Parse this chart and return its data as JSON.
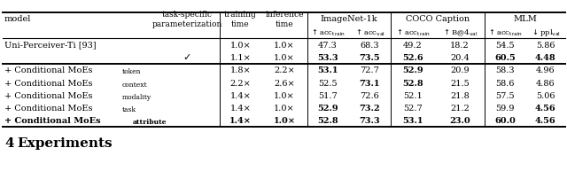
{
  "rows": [
    {
      "model": "Uni-Perceiver-Ti [93]",
      "param": "",
      "train_time": "1.0×",
      "inf_time": "1.0×",
      "imgnet_train": "47.3",
      "imgnet_val": "68.3",
      "coco_train": "49.2",
      "coco_val": "18.2",
      "mlm_train": "54.5",
      "mlm_val": "5.86",
      "bold": [],
      "highlight": false
    },
    {
      "model": "",
      "param": "✓",
      "train_time": "1.1×",
      "inf_time": "1.0×",
      "imgnet_train": "53.3",
      "imgnet_val": "73.5",
      "coco_train": "52.6",
      "coco_val": "20.4",
      "mlm_train": "60.5",
      "mlm_val": "4.48",
      "bold": [
        "imgnet_train",
        "imgnet_val",
        "coco_train",
        "mlm_train",
        "mlm_val"
      ],
      "highlight": false
    },
    {
      "model": "+ Conditional MoEs",
      "model_sub": "token",
      "param": "",
      "train_time": "1.8×",
      "inf_time": "2.2×",
      "imgnet_train": "53.1",
      "imgnet_val": "72.7",
      "coco_train": "52.9",
      "coco_val": "20.9",
      "mlm_train": "58.3",
      "mlm_val": "4.96",
      "bold": [
        "imgnet_train",
        "coco_train"
      ],
      "highlight": false
    },
    {
      "model": "+ Conditional MoEs",
      "model_sub": "context",
      "param": "",
      "train_time": "2.2×",
      "inf_time": "2.6×",
      "imgnet_train": "52.5",
      "imgnet_val": "73.1",
      "coco_train": "52.8",
      "coco_val": "21.5",
      "mlm_train": "58.6",
      "mlm_val": "4.86",
      "bold": [
        "imgnet_val",
        "coco_train"
      ],
      "highlight": false
    },
    {
      "model": "+ Conditional MoEs",
      "model_sub": "modality",
      "param": "",
      "train_time": "1.4×",
      "inf_time": "1.0×",
      "imgnet_train": "51.7",
      "imgnet_val": "72.6",
      "coco_train": "52.1",
      "coco_val": "21.8",
      "mlm_train": "57.5",
      "mlm_val": "5.06",
      "bold": [],
      "highlight": false
    },
    {
      "model": "+ Conditional MoEs",
      "model_sub": "task",
      "param": "",
      "train_time": "1.4×",
      "inf_time": "1.0×",
      "imgnet_train": "52.9",
      "imgnet_val": "73.2",
      "coco_train": "52.7",
      "coco_val": "21.2",
      "mlm_train": "59.9",
      "mlm_val": "4.56",
      "bold": [
        "imgnet_train",
        "imgnet_val",
        "mlm_val"
      ],
      "highlight": false
    },
    {
      "model": "+ Conditional MoEs",
      "model_sub": "attribute",
      "param": "",
      "train_time": "1.4×",
      "inf_time": "1.0×",
      "imgnet_train": "52.8",
      "imgnet_val": "73.3",
      "coco_train": "53.1",
      "coco_val": "23.0",
      "mlm_train": "60.0",
      "mlm_val": "4.56",
      "bold": [
        "imgnet_train",
        "imgnet_val",
        "coco_train",
        "coco_val",
        "mlm_train",
        "mlm_val"
      ],
      "highlight": true
    }
  ],
  "bg_color": "#ffffff",
  "text_color": "#000000",
  "fs": 7.0,
  "fs_sub": 5.5,
  "fs_header": 7.0,
  "fs_section": 11.0
}
